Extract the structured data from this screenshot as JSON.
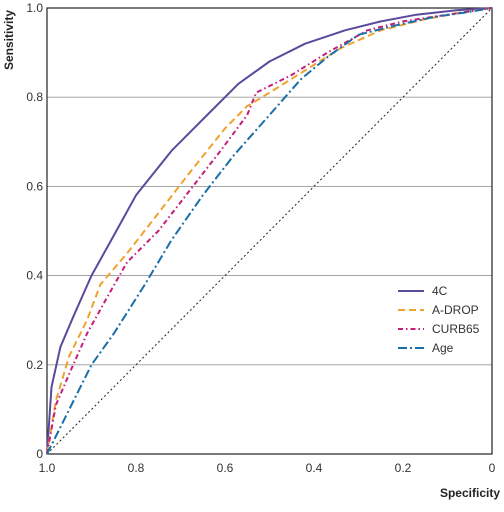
{
  "chart_data": {
    "type": "line",
    "xlabel": "Specificity",
    "ylabel": "Sensitivity",
    "xlim": [
      1.0,
      0
    ],
    "ylim": [
      0,
      1.0
    ],
    "x_ticks": [
      1.0,
      0.8,
      0.6,
      0.4,
      0.2,
      0
    ],
    "x_tick_labels": [
      "1.0",
      "0.8",
      "0.6",
      "0.4",
      "0.2",
      "0"
    ],
    "y_ticks": [
      0,
      0.2,
      0.4,
      0.6,
      0.8,
      1.0
    ],
    "y_tick_labels": [
      "0",
      "0.2",
      "0.4",
      "0.6",
      "0.8",
      "1.0"
    ],
    "grid": "horizontal",
    "legend_position": "bottom-right",
    "reference_line": {
      "from": [
        1.0,
        0
      ],
      "to": [
        0,
        1.0
      ],
      "style": "dotted",
      "color": "#222222"
    },
    "series": [
      {
        "name": "4C",
        "color": "#5b4a9c",
        "dash": "solid",
        "x": [
          1.0,
          0.99,
          0.97,
          0.94,
          0.9,
          0.85,
          0.8,
          0.72,
          0.64,
          0.57,
          0.5,
          0.42,
          0.33,
          0.25,
          0.17,
          0.08,
          0
        ],
        "y": [
          0,
          0.15,
          0.24,
          0.31,
          0.4,
          0.49,
          0.58,
          0.68,
          0.76,
          0.83,
          0.88,
          0.92,
          0.95,
          0.97,
          0.985,
          0.995,
          1.0
        ]
      },
      {
        "name": "A-DROP",
        "color": "#f0a22e",
        "dash": "dashed",
        "x": [
          1.0,
          0.98,
          0.95,
          0.91,
          0.88,
          0.82,
          0.75,
          0.68,
          0.6,
          0.55,
          0.5,
          0.42,
          0.34,
          0.25,
          0.15,
          0.07,
          0
        ],
        "y": [
          0,
          0.12,
          0.22,
          0.3,
          0.38,
          0.45,
          0.54,
          0.63,
          0.73,
          0.78,
          0.81,
          0.86,
          0.91,
          0.95,
          0.975,
          0.99,
          1.0
        ]
      },
      {
        "name": "CURB65",
        "color": "#c41e7a",
        "dash": "dashdot",
        "x": [
          1.0,
          0.98,
          0.95,
          0.91,
          0.86,
          0.82,
          0.75,
          0.68,
          0.61,
          0.55,
          0.53,
          0.45,
          0.37,
          0.28,
          0.2,
          0.1,
          0
        ],
        "y": [
          0,
          0.11,
          0.18,
          0.27,
          0.36,
          0.43,
          0.5,
          0.59,
          0.68,
          0.76,
          0.81,
          0.85,
          0.9,
          0.95,
          0.97,
          0.985,
          1.0
        ]
      },
      {
        "name": "Age",
        "color": "#1a6ea8",
        "dash": "longdashdot",
        "x": [
          1.0,
          0.98,
          0.94,
          0.9,
          0.85,
          0.78,
          0.72,
          0.65,
          0.58,
          0.5,
          0.43,
          0.37,
          0.3,
          0.22,
          0.13,
          0.06,
          0
        ],
        "y": [
          0,
          0.04,
          0.12,
          0.2,
          0.27,
          0.38,
          0.48,
          0.58,
          0.67,
          0.76,
          0.84,
          0.89,
          0.94,
          0.96,
          0.98,
          0.99,
          1.0
        ]
      }
    ]
  }
}
